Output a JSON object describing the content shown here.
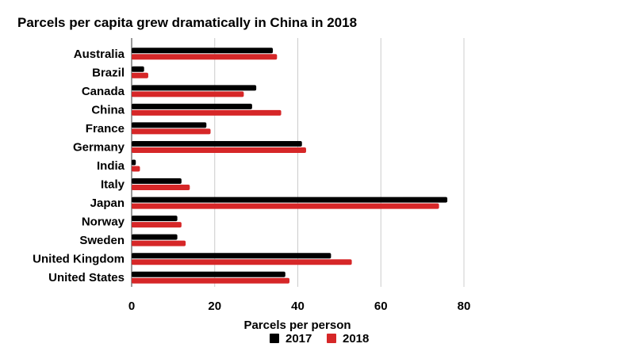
{
  "title": "Parcels per capita grew dramatically in China in 2018",
  "chart_data": {
    "type": "bar",
    "orientation": "horizontal",
    "title": "Parcels per capita grew dramatically in China in 2018",
    "xlabel": "Parcels per person",
    "ylabel": "",
    "xlim": [
      0,
      80
    ],
    "xticks": [
      0,
      20,
      40,
      60,
      80
    ],
    "grid": true,
    "legend_position": "bottom",
    "categories": [
      "Australia",
      "Brazil",
      "Canada",
      "China",
      "France",
      "Germany",
      "India",
      "Italy",
      "Japan",
      "Norway",
      "Sweden",
      "United Kingdom",
      "United States"
    ],
    "series": [
      {
        "name": "2017",
        "color": "#000000",
        "values": [
          34,
          3,
          30,
          29,
          18,
          41,
          1,
          12,
          76,
          11,
          11,
          48,
          37
        ]
      },
      {
        "name": "2018",
        "color": "#d62728",
        "values": [
          35,
          4,
          27,
          36,
          19,
          42,
          2,
          14,
          74,
          12,
          13,
          53,
          38
        ]
      }
    ]
  }
}
